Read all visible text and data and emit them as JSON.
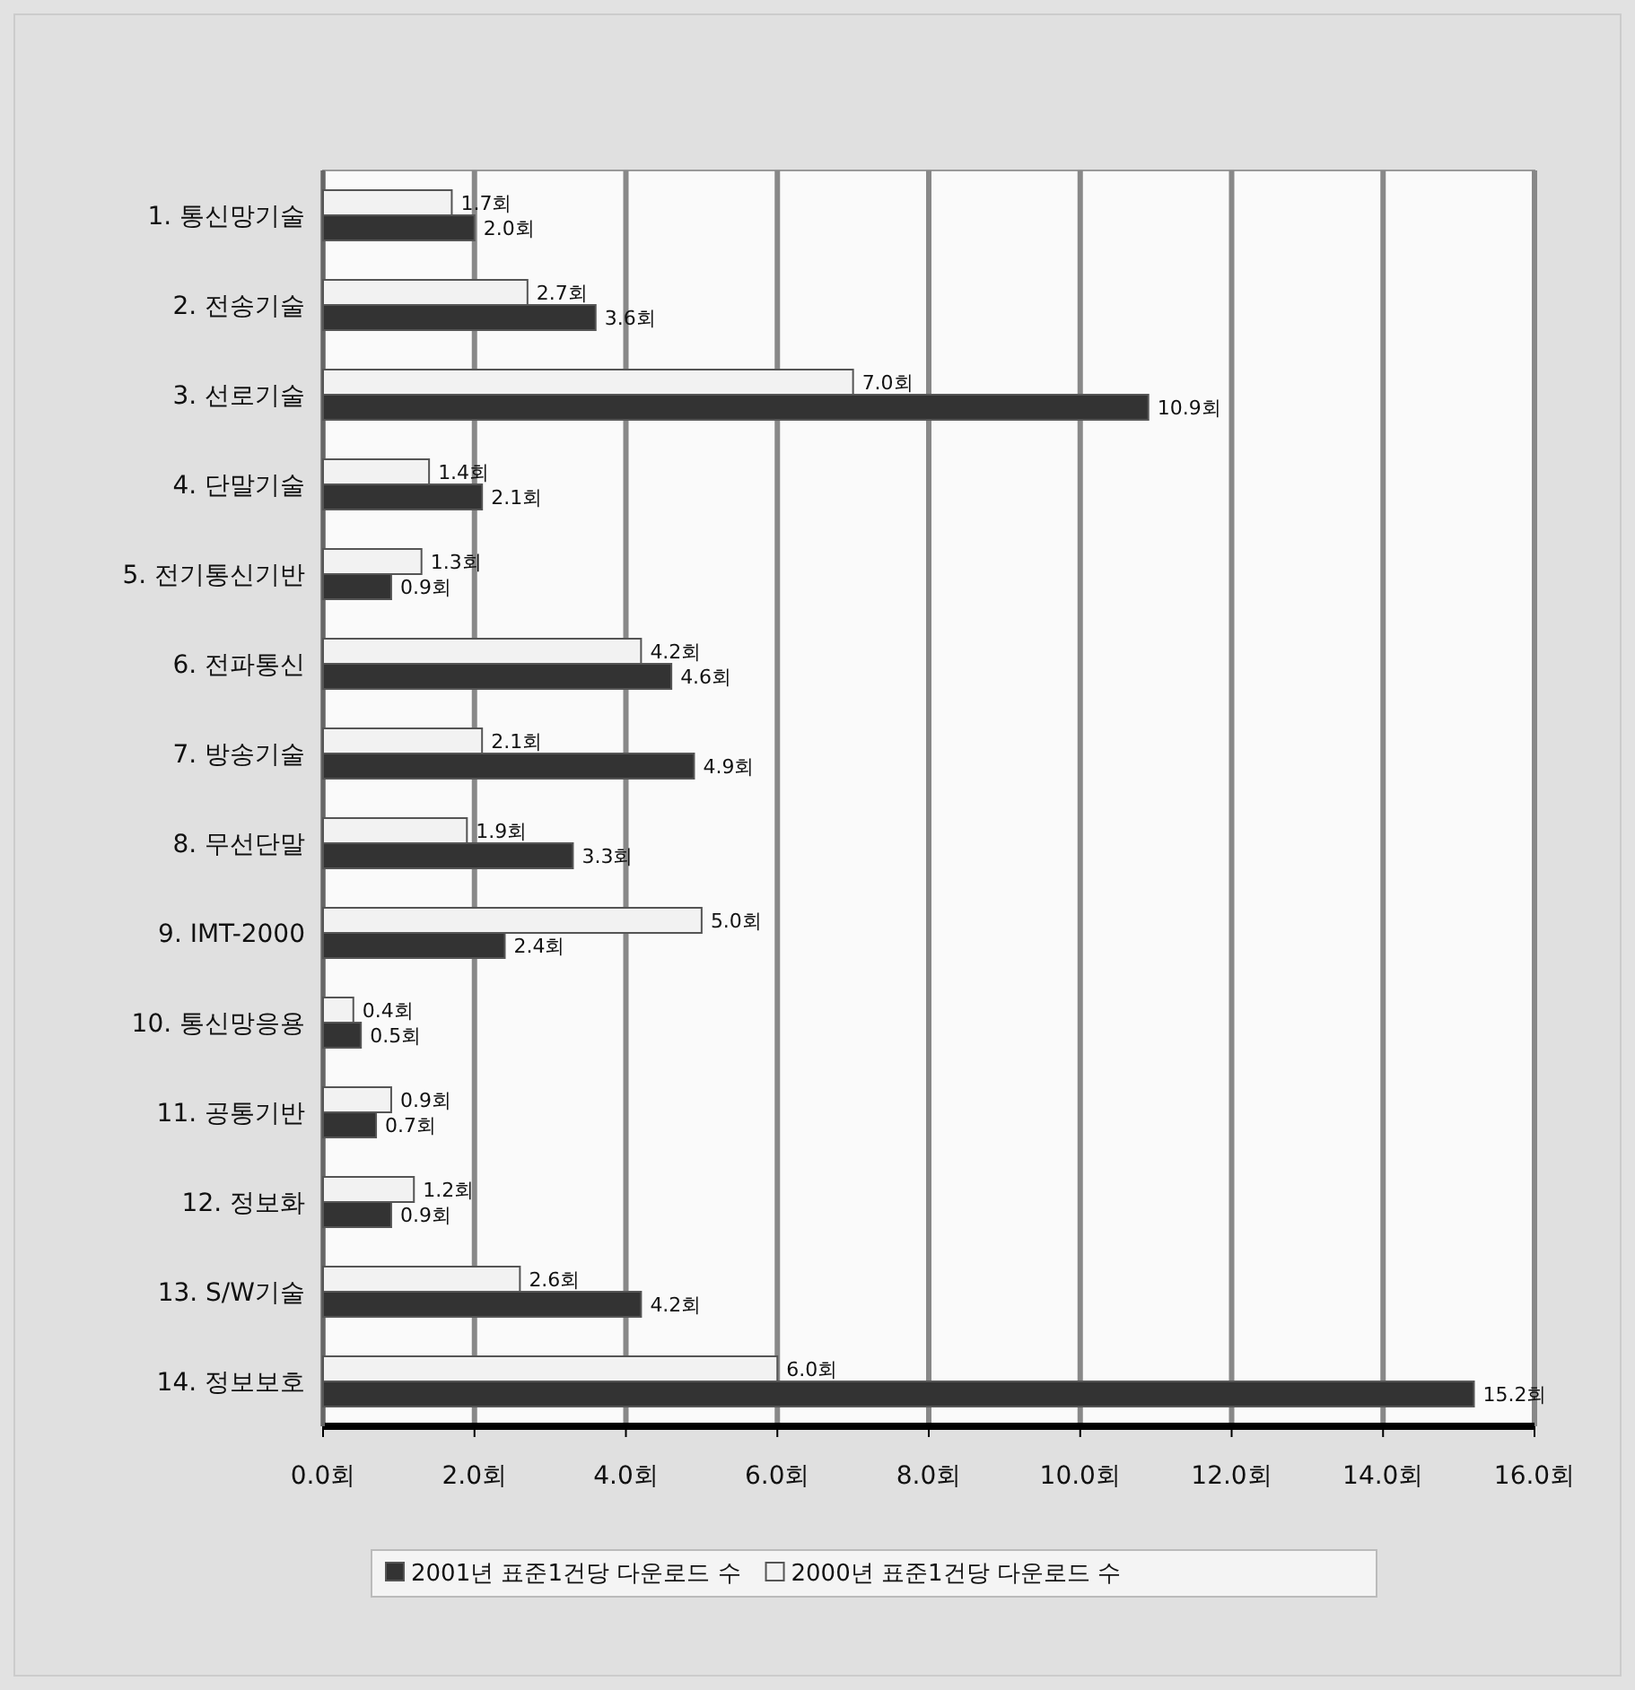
{
  "chart_data": {
    "type": "bar",
    "orientation": "horizontal",
    "categories": [
      "1.  통신망기술",
      "2.  전송기술",
      "3.  선로기술",
      "4.  단말기술",
      "5.  전기통신기반",
      "6.  전파통신",
      "7.  방송기술",
      "8.  무선단말",
      "9.  IMT-2000",
      "10.  통신망응용",
      "11.  공통기반",
      "12.  정보화",
      "13.  S/W기술",
      "14.  정보보호"
    ],
    "series": [
      {
        "name": "2001년 표준1건당 다운로드 수",
        "color": "#333333",
        "values": [
          2.0,
          3.6,
          10.9,
          2.1,
          0.9,
          4.6,
          4.9,
          3.3,
          2.4,
          0.5,
          0.7,
          0.9,
          4.2,
          15.2
        ],
        "value_labels": [
          "2.0회",
          "3.6회",
          "10.9회",
          "2.1회",
          "0.9회",
          "4.6회",
          "4.9회",
          "3.3회",
          "2.4회",
          "0.5회",
          "0.7회",
          "0.9회",
          "4.2회",
          "15.2회"
        ]
      },
      {
        "name": "2000년 표준1건당 다운로드 수",
        "color": "#f2f2f2",
        "values": [
          1.7,
          2.7,
          7.0,
          1.4,
          1.3,
          4.2,
          2.1,
          1.9,
          5.0,
          0.4,
          0.9,
          1.2,
          2.6,
          6.0
        ],
        "value_labels": [
          "1.7회",
          "2.7회",
          "7.0회",
          "1.4회",
          "1.3회",
          "4.2회",
          "2.1회",
          "1.9회",
          "5.0회",
          "0.4회",
          "0.9회",
          "1.2회",
          "2.6회",
          "6.0회"
        ]
      }
    ],
    "xlim": [
      0,
      16
    ],
    "xticks": [
      {
        "value": 0,
        "label": "0.0회"
      },
      {
        "value": 2,
        "label": "2.0회"
      },
      {
        "value": 4,
        "label": "4.0회"
      },
      {
        "value": 6,
        "label": "6.0회"
      },
      {
        "value": 8,
        "label": "8.0회"
      },
      {
        "value": 10,
        "label": "10.0회"
      },
      {
        "value": 12,
        "label": "12.0회"
      },
      {
        "value": 14,
        "label": "14.0회"
      },
      {
        "value": 16,
        "label": "16.0회"
      }
    ],
    "grid": "x",
    "legend": "bottom"
  }
}
